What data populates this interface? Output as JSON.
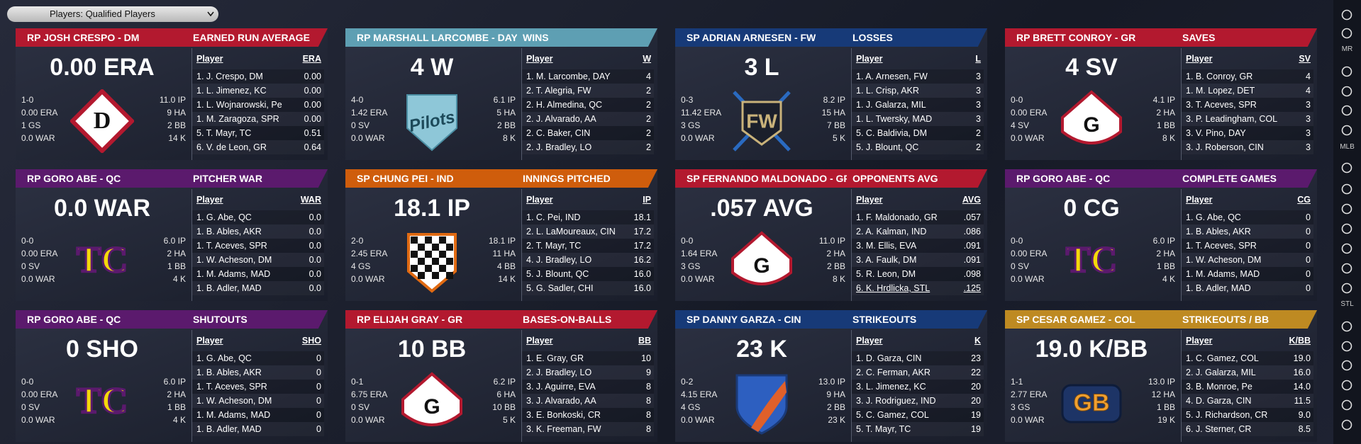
{
  "toolbar": {
    "dropdown": "Players: Qualified Players"
  },
  "sidebar": {
    "labels": [
      "MR",
      "MLB",
      "STL"
    ]
  },
  "cards": [
    {
      "header": "RP JOSH CRESPO - DM",
      "title": "EARNED RUN AVERAGE",
      "color": "#b3192f",
      "big": "0.00 ERA",
      "left": [
        "1-0",
        "0.00 ERA",
        "1 GS",
        "0.0 WAR"
      ],
      "right": [
        "11.0 IP",
        "9 HA",
        "2 BB",
        "14 K"
      ],
      "logo": {
        "shape": "diamond",
        "text": "D"
      },
      "columns": [
        "Player",
        "ERA"
      ],
      "rows": [
        [
          "1. J. Crespo, DM",
          "0.00"
        ],
        [
          "1. L. Jimenez, KC",
          "0.00"
        ],
        [
          "1. L. Wojnarowski, Pe",
          "0.00"
        ],
        [
          "1. M. Zaragoza, SPR",
          "0.00"
        ],
        [
          "5. T. Mayr, TC",
          "0.51"
        ],
        [
          "6. V. de Leon, GR",
          "0.64"
        ]
      ]
    },
    {
      "header": "RP MARSHALL LARCOMBE - DAY",
      "title": "WINS",
      "color": "#5e9fb3",
      "big": "4 W",
      "left": [
        "4-0",
        "1.42 ERA",
        "0 SV",
        "0.0 WAR"
      ],
      "right": [
        "6.1 IP",
        "5 HA",
        "2 BB",
        "8 K"
      ],
      "logo": {
        "shape": "pentagon",
        "text": "Pilots"
      },
      "columns": [
        "Player",
        "W"
      ],
      "rows": [
        [
          "1. M. Larcombe, DAY",
          "4"
        ],
        [
          "2. T. Alegria, FW",
          "2"
        ],
        [
          "2. H. Almedina, QC",
          "2"
        ],
        [
          "2. J. Alvarado, AA",
          "2"
        ],
        [
          "2. C. Baker, CIN",
          "2"
        ],
        [
          "2. J. Bradley, LO",
          "2"
        ]
      ]
    },
    {
      "header": "SP ADRIAN ARNESEN - FW",
      "title": "LOSSES",
      "color": "#173a78",
      "big": "3 L",
      "left": [
        "0-3",
        "11.42 ERA",
        "3 GS",
        "0.0 WAR"
      ],
      "right": [
        "8.2 IP",
        "15 HA",
        "7 BB",
        "5 K"
      ],
      "logo": {
        "shape": "bats",
        "text": "FW"
      },
      "columns": [
        "Player",
        "L"
      ],
      "rows": [
        [
          "1. A. Arnesen, FW",
          "3"
        ],
        [
          "1. L. Crisp, AKR",
          "3"
        ],
        [
          "1. J. Galarza, MIL",
          "3"
        ],
        [
          "1. L. Twersky, MAD",
          "3"
        ],
        [
          "5. C. Baldivia, DM",
          "2"
        ],
        [
          "5. J. Blount, QC",
          "2"
        ]
      ]
    },
    {
      "header": "RP BRETT CONROY - GR",
      "title": "SAVES",
      "color": "#b3192f",
      "big": "4 SV",
      "left": [
        "0-0",
        "0.00 ERA",
        "4 SV",
        "0.0 WAR"
      ],
      "right": [
        "4.1 IP",
        "2 HA",
        "1 BB",
        "8 K"
      ],
      "logo": {
        "shape": "plate",
        "text": "G"
      },
      "columns": [
        "Player",
        "SV"
      ],
      "rows": [
        [
          "1. B. Conroy, GR",
          "4"
        ],
        [
          "1. M. Lopez, DET",
          "4"
        ],
        [
          "3. T. Aceves, SPR",
          "3"
        ],
        [
          "3. P. Leadingham, COL",
          "3"
        ],
        [
          "3. V. Pino, DAY",
          "3"
        ],
        [
          "3. J. Roberson, CIN",
          "3"
        ]
      ]
    },
    {
      "header": "RP GORO ABE - QC",
      "title": "PITCHER WAR",
      "color": "#5b1a6d",
      "big": "0.0 WAR",
      "left": [
        "0-0",
        "0.00 ERA",
        "0 SV",
        "0.0 WAR"
      ],
      "right": [
        "6.0 IP",
        "2 HA",
        "1 BB",
        "4 K"
      ],
      "logo": {
        "shape": "tc",
        "text": "TC"
      },
      "columns": [
        "Player",
        "WAR"
      ],
      "rows": [
        [
          "1. G. Abe, QC",
          "0.0"
        ],
        [
          "1. B. Ables, AKR",
          "0.0"
        ],
        [
          "1. T. Aceves, SPR",
          "0.0"
        ],
        [
          "1. W. Acheson, DM",
          "0.0"
        ],
        [
          "1. M. Adams, MAD",
          "0.0"
        ],
        [
          "1. B. Adler, MAD",
          "0.0"
        ]
      ]
    },
    {
      "header": "SP CHUNG PEI - IND",
      "title": "INNINGS PITCHED",
      "color": "#cf5d0c",
      "big": "18.1 IP",
      "left": [
        "2-0",
        "2.45 ERA",
        "4 GS",
        "0.0 WAR"
      ],
      "right": [
        "18.1 IP",
        "11 HA",
        "4 BB",
        "14 K"
      ],
      "logo": {
        "shape": "checker"
      },
      "columns": [
        "Player",
        "IP"
      ],
      "rows": [
        [
          "1. C. Pei, IND",
          "18.1"
        ],
        [
          "2. L. LaMoureaux, CIN",
          "17.2"
        ],
        [
          "2. T. Mayr, TC",
          "17.2"
        ],
        [
          "4. J. Bradley, LO",
          "16.2"
        ],
        [
          "5. J. Blount, QC",
          "16.0"
        ],
        [
          "5. G. Sadler, CHI",
          "16.0"
        ]
      ]
    },
    {
      "header": "SP FERNANDO MALDONADO - GR",
      "title": "OPPONENTS AVG",
      "color": "#b3192f",
      "big": ".057 AVG",
      "left": [
        "0-0",
        "1.64 ERA",
        "3 GS",
        "0.0 WAR"
      ],
      "right": [
        "11.0 IP",
        "2 HA",
        "2 BB",
        "8 K"
      ],
      "logo": {
        "shape": "plate",
        "text": "G"
      },
      "columns": [
        "Player",
        "AVG"
      ],
      "rows": [
        [
          "1. F. Maldonado, GR",
          ".057"
        ],
        [
          "2. A. Kalman, IND",
          ".086"
        ],
        [
          "3. M. Ellis, EVA",
          ".091"
        ],
        [
          "3. A. Faulk, DM",
          ".091"
        ],
        [
          "5. R. Leon, DM",
          ".098"
        ],
        [
          "6. K. Hrdlicka, STL",
          ".125"
        ]
      ],
      "underline_row": 5
    },
    {
      "header": "RP GORO ABE - QC",
      "title": "COMPLETE GAMES",
      "color": "#5b1a6d",
      "big": "0 CG",
      "left": [
        "0-0",
        "0.00 ERA",
        "0 SV",
        "0.0 WAR"
      ],
      "right": [
        "6.0 IP",
        "2 HA",
        "1 BB",
        "4 K"
      ],
      "logo": {
        "shape": "tc",
        "text": "TC"
      },
      "columns": [
        "Player",
        "CG"
      ],
      "rows": [
        [
          "1. G. Abe, QC",
          "0"
        ],
        [
          "1. B. Ables, AKR",
          "0"
        ],
        [
          "1. T. Aceves, SPR",
          "0"
        ],
        [
          "1. W. Acheson, DM",
          "0"
        ],
        [
          "1. M. Adams, MAD",
          "0"
        ],
        [
          "1. B. Adler, MAD",
          "0"
        ]
      ]
    },
    {
      "header": "RP GORO ABE - QC",
      "title": "SHUTOUTS",
      "color": "#5b1a6d",
      "big": "0 SHO",
      "left": [
        "0-0",
        "0.00 ERA",
        "0 SV",
        "0.0 WAR"
      ],
      "right": [
        "6.0 IP",
        "2 HA",
        "1 BB",
        "4 K"
      ],
      "logo": {
        "shape": "tc",
        "text": "TC"
      },
      "columns": [
        "Player",
        "SHO"
      ],
      "rows": [
        [
          "1. G. Abe, QC",
          "0"
        ],
        [
          "1. B. Ables, AKR",
          "0"
        ],
        [
          "1. T. Aceves, SPR",
          "0"
        ],
        [
          "1. W. Acheson, DM",
          "0"
        ],
        [
          "1. M. Adams, MAD",
          "0"
        ],
        [
          "1. B. Adler, MAD",
          "0"
        ]
      ]
    },
    {
      "header": "RP ELIJAH GRAY - GR",
      "title": "BASES-ON-BALLS",
      "color": "#b3192f",
      "big": "10 BB",
      "left": [
        "0-1",
        "6.75 ERA",
        "0 SV",
        "0.0 WAR"
      ],
      "right": [
        "6.2 IP",
        "6 HA",
        "10 BB",
        "5 K"
      ],
      "logo": {
        "shape": "plate",
        "text": "G"
      },
      "columns": [
        "Player",
        "BB"
      ],
      "rows": [
        [
          "1. E. Gray, GR",
          "10"
        ],
        [
          "2. J. Bradley, LO",
          "9"
        ],
        [
          "3. J. Aguirre, EVA",
          "8"
        ],
        [
          "3. J. Alvarado, AA",
          "8"
        ],
        [
          "3. E. Bonkoski, CR",
          "8"
        ],
        [
          "3. K. Freeman, FW",
          "8"
        ]
      ]
    },
    {
      "header": "SP DANNY GARZA - CIN",
      "title": "STRIKEOUTS",
      "color": "#173a78",
      "big": "23 K",
      "left": [
        "0-2",
        "4.15 ERA",
        "4 GS",
        "0.0 WAR"
      ],
      "right": [
        "13.0 IP",
        "9 HA",
        "2 BB",
        "23 K"
      ],
      "logo": {
        "shape": "shield"
      },
      "columns": [
        "Player",
        "K"
      ],
      "rows": [
        [
          "1. D. Garza, CIN",
          "23"
        ],
        [
          "2. C. Ferman, AKR",
          "22"
        ],
        [
          "3. L. Jimenez, KC",
          "20"
        ],
        [
          "3. J. Rodriguez, IND",
          "20"
        ],
        [
          "5. C. Gamez, COL",
          "19"
        ],
        [
          "5. T. Mayr, TC",
          "19"
        ]
      ]
    },
    {
      "header": "SP CESAR GAMEZ - COL",
      "title": "STRIKEOUTS / BB",
      "color": "#be8a22",
      "big": "19.0 K/BB",
      "left": [
        "1-1",
        "2.77 ERA",
        "3 GS",
        "0.0 WAR"
      ],
      "right": [
        "13.0 IP",
        "12 HA",
        "1 BB",
        "19 K"
      ],
      "logo": {
        "shape": "oval",
        "text": "GB"
      },
      "columns": [
        "Player",
        "K/BB"
      ],
      "rows": [
        [
          "1. C. Gamez, COL",
          "19.0"
        ],
        [
          "2. J. Galarza, MIL",
          "16.0"
        ],
        [
          "3. B. Monroe, Pe",
          "14.0"
        ],
        [
          "4. D. Garza, CIN",
          "11.5"
        ],
        [
          "5. J. Richardson, CR",
          "9.0"
        ],
        [
          "6. J. Sterner, CR",
          "8.5"
        ]
      ]
    }
  ]
}
